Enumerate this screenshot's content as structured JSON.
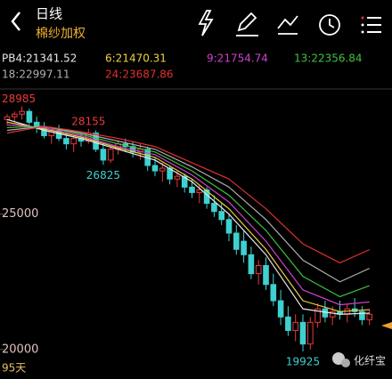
{
  "header": {
    "title": "日线",
    "subtitle": "棉纱加权"
  },
  "period": "95天",
  "watermark": "化纤宝",
  "chart_data": {
    "type": "candlestick",
    "up_color": "#e83a3a",
    "down_color": "#3fd0d0",
    "ylim": [
      19400,
      29300
    ],
    "yticks": [
      25000,
      20000
    ],
    "ohlc": [
      [
        28500,
        28700,
        28300,
        28600
      ],
      [
        28600,
        28800,
        28400,
        28700
      ],
      [
        28700,
        28985,
        28500,
        28800
      ],
      [
        28800,
        28900,
        28300,
        28400
      ],
      [
        28400,
        28600,
        28000,
        28200
      ],
      [
        28200,
        28400,
        27800,
        27900
      ],
      [
        27900,
        28200,
        27600,
        28100
      ],
      [
        28100,
        28300,
        27700,
        27800
      ],
      [
        27800,
        28000,
        27400,
        27600
      ],
      [
        27600,
        27900,
        27300,
        27800
      ],
      [
        27800,
        28000,
        27500,
        27700
      ],
      [
        27700,
        28155,
        27600,
        28000
      ],
      [
        28000,
        28100,
        27300,
        27400
      ],
      [
        27400,
        27600,
        26825,
        27000
      ],
      [
        27000,
        27500,
        26900,
        27400
      ],
      [
        27400,
        27700,
        27200,
        27600
      ],
      [
        27600,
        27800,
        27300,
        27500
      ],
      [
        27500,
        27700,
        27100,
        27300
      ],
      [
        27300,
        27600,
        27000,
        27400
      ],
      [
        27400,
        27500,
        26600,
        26800
      ],
      [
        26800,
        27100,
        26400,
        26600
      ],
      [
        26600,
        26900,
        26200,
        26700
      ],
      [
        26700,
        26800,
        26100,
        26300
      ],
      [
        26300,
        26600,
        26000,
        26400
      ],
      [
        26400,
        26500,
        25800,
        26000
      ],
      [
        26000,
        26300,
        25600,
        25800
      ],
      [
        25800,
        26100,
        25400,
        25900
      ],
      [
        25900,
        26000,
        25200,
        25400
      ],
      [
        25400,
        25700,
        24900,
        25100
      ],
      [
        25100,
        25400,
        24600,
        24800
      ],
      [
        24800,
        25000,
        24000,
        24300
      ],
      [
        24300,
        24600,
        23500,
        23700
      ],
      [
        24000,
        24400,
        23200,
        23500
      ],
      [
        23500,
        23800,
        22600,
        22800
      ],
      [
        22800,
        23300,
        22400,
        23100
      ],
      [
        23100,
        23400,
        22200,
        22400
      ],
      [
        22400,
        22800,
        21600,
        21800
      ],
      [
        21800,
        22200,
        20900,
        21200
      ],
      [
        21200,
        21600,
        20500,
        20700
      ],
      [
        20700,
        21300,
        20300,
        21000
      ],
      [
        21000,
        21300,
        19925,
        20200
      ],
      [
        20200,
        21200,
        20000,
        21000
      ],
      [
        21000,
        21700,
        20800,
        21500
      ],
      [
        21500,
        21800,
        21000,
        21200
      ],
      [
        21200,
        21600,
        20900,
        21400
      ],
      [
        21400,
        21800,
        21100,
        21300
      ],
      [
        21300,
        21700,
        21000,
        21500
      ],
      [
        21500,
        21900,
        21200,
        21400
      ],
      [
        21400,
        21600,
        20900,
        21100
      ],
      [
        21100,
        21500,
        20900,
        21300
      ]
    ],
    "highlights": [
      {
        "ref": "chart_data.ohlc.2.1",
        "color": "#e83a3a"
      },
      {
        "ref": "chart_data.ohlc.11.1",
        "color": "#e83a3a"
      },
      {
        "ref": "chart_data.ohlc.13.2",
        "color": "#3fd0d0"
      },
      {
        "ref": "chart_data.ohlc.40.2",
        "color": "#3fd0d0"
      }
    ],
    "ma_index": [
      0,
      5,
      10,
      15,
      20,
      25,
      30,
      35,
      40,
      45,
      49
    ],
    "series": [
      {
        "name": "PB4:21341.52",
        "color": "#e8e8e8",
        "values": [
          28500,
          28100,
          27800,
          27400,
          27000,
          26200,
          25000,
          23500,
          21500,
          21300,
          21341.52
        ]
      },
      {
        "name": "6:21470.31",
        "color": "#f0d040",
        "values": [
          28400,
          28150,
          27850,
          27450,
          27100,
          26300,
          25200,
          23700,
          21800,
          21400,
          21470.31
        ]
      },
      {
        "name": "9:21754.74",
        "color": "#d040d0",
        "values": [
          28300,
          28200,
          27900,
          27500,
          27200,
          26450,
          25450,
          24000,
          22200,
          21650,
          21754.74
        ]
      },
      {
        "name": "13:22356.84",
        "color": "#40c040",
        "values": [
          28200,
          28250,
          27950,
          27600,
          27300,
          26600,
          25700,
          24400,
          22700,
          21950,
          22356.84
        ]
      },
      {
        "name": "18:22997.11",
        "color": "#b0b0b0",
        "values": [
          28100,
          28250,
          28000,
          27700,
          27400,
          26750,
          26000,
          24800,
          23300,
          22500,
          22997.11
        ]
      },
      {
        "name": "24:23687.86",
        "color": "#e03030",
        "values": [
          28000,
          28250,
          28050,
          27800,
          27500,
          26900,
          26300,
          25200,
          23900,
          23200,
          23687.86
        ]
      }
    ]
  }
}
